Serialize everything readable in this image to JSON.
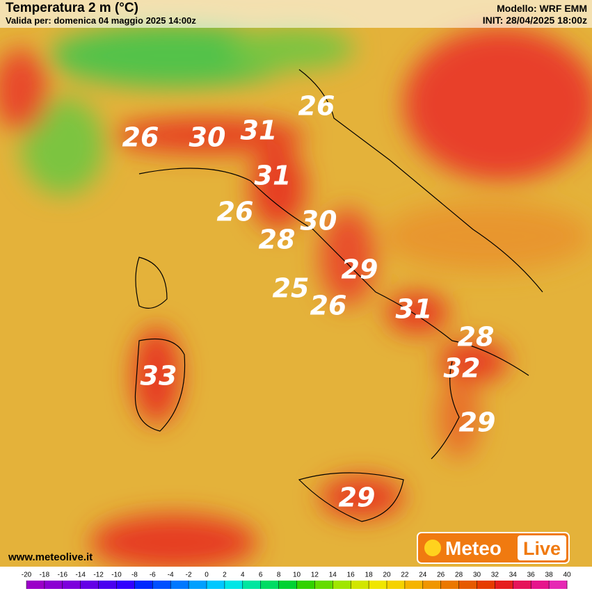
{
  "header": {
    "title": "Temperatura 2 m (°C)",
    "valid": "Valida per: domenica 04 maggio 2025 14:00z",
    "model": "Modello: WRF EMM",
    "init": "INIT: 28/04/2025 18:00z"
  },
  "labels": [
    26,
    26,
    30,
    31,
    31,
    26,
    30,
    28,
    29,
    25,
    26,
    31,
    28,
    33,
    32,
    29,
    29
  ],
  "website": "www.meteolive.it",
  "logo": {
    "part1": "Meteo",
    "part2": "Live"
  },
  "colorbar": {
    "ticks": [
      -20,
      -18,
      -16,
      -14,
      -12,
      -10,
      -8,
      -6,
      -4,
      -2,
      0,
      2,
      4,
      6,
      8,
      10,
      12,
      14,
      16,
      18,
      20,
      22,
      24,
      26,
      28,
      30,
      32,
      34,
      36,
      38,
      40
    ],
    "colors": [
      "#9b00c8",
      "#8c00d2",
      "#7d00dc",
      "#6400e6",
      "#4b00f0",
      "#3200ff",
      "#0028ff",
      "#0050ff",
      "#0078ff",
      "#00a0ff",
      "#00c8ff",
      "#00e6e6",
      "#00e6a0",
      "#00dc64",
      "#00d232",
      "#32d200",
      "#64dc00",
      "#a0e600",
      "#d2e600",
      "#f0e600",
      "#f5d200",
      "#f5b400",
      "#f09600",
      "#eb7800",
      "#e65a00",
      "#e63c00",
      "#e61e1e",
      "#e6145a",
      "#e6148c",
      "#e628b4"
    ]
  }
}
